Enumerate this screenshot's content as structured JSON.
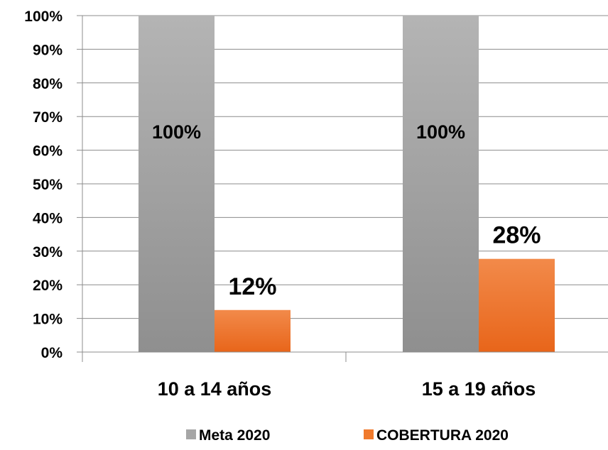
{
  "chart_data": {
    "type": "bar",
    "categories": [
      "10 a 14 años",
      "15 a 19 años"
    ],
    "series": [
      {
        "name": "Meta 2020",
        "values": [
          100,
          100
        ],
        "labels": [
          "100%",
          "100%"
        ],
        "color": "#a6a6a6"
      },
      {
        "name": "COBERTURA  2020",
        "values": [
          12.5,
          27.7
        ],
        "labels": [
          "12%",
          "28%"
        ],
        "color": "#f07a2c"
      }
    ],
    "ylim": [
      0,
      100
    ],
    "yticks": [
      0,
      10,
      20,
      30,
      40,
      50,
      60,
      70,
      80,
      90,
      100
    ],
    "ytick_labels": [
      "0%",
      "10%",
      "20%",
      "30%",
      "40%",
      "50%",
      "60%",
      "70%",
      "80%",
      "90%",
      "100%"
    ],
    "grid": true,
    "legend": "bottom"
  }
}
